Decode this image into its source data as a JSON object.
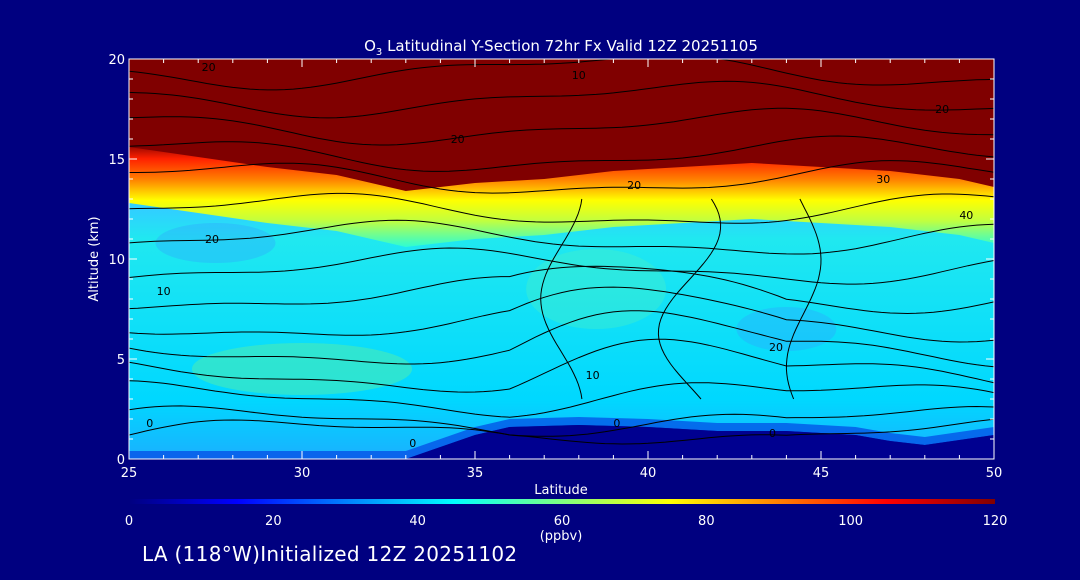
{
  "chart_data": {
    "type": "heatmap",
    "title": "O3 Latitudinal Y-Section 72hr  Fx Valid 12Z 20251105",
    "title_main": "O",
    "title_sub": "3",
    "title_rest": " Latitudinal Y-Section 72hr  Fx Valid 12Z 20251105",
    "xlabel": "Latitude",
    "ylabel": "Altitude (km)",
    "xlim": [
      25,
      50
    ],
    "ylim": [
      0,
      20
    ],
    "x_ticks": [
      25,
      30,
      35,
      40,
      45,
      50
    ],
    "y_ticks": [
      0,
      5,
      10,
      15,
      20
    ],
    "colorbar": {
      "range": [
        0,
        120
      ],
      "ticks": [
        0,
        20,
        40,
        60,
        80,
        100,
        120
      ],
      "unit_label": "(ppbv)",
      "colors": [
        "#000080",
        "#0000ff",
        "#0080ff",
        "#00ffff",
        "#80ff80",
        "#ffff00",
        "#ff8000",
        "#ff0000",
        "#800000"
      ]
    },
    "tropopause_km": [
      [
        25,
        14.0
      ],
      [
        27,
        13.5
      ],
      [
        29,
        13.0
      ],
      [
        31,
        12.6
      ],
      [
        33,
        11.8
      ],
      [
        35,
        12.2
      ],
      [
        37,
        12.4
      ],
      [
        39,
        12.8
      ],
      [
        41,
        13.0
      ],
      [
        43,
        13.2
      ],
      [
        45,
        13.0
      ],
      [
        47,
        12.8
      ],
      [
        49,
        12.4
      ],
      [
        50,
        12.0
      ]
    ],
    "terrain_km": [
      [
        25,
        0
      ],
      [
        33,
        0
      ],
      [
        34,
        0.6
      ],
      [
        35,
        1.2
      ],
      [
        36,
        1.6
      ],
      [
        38,
        1.7
      ],
      [
        40,
        1.6
      ],
      [
        42,
        1.4
      ],
      [
        44,
        1.4
      ],
      [
        46,
        1.2
      ],
      [
        47,
        0.9
      ],
      [
        48,
        0.7
      ],
      [
        50,
        1.2
      ]
    ],
    "contour_labels": [
      {
        "text": "0",
        "lat": 25.6,
        "alt": 1.8
      },
      {
        "text": "0",
        "lat": 33.2,
        "alt": 0.8
      },
      {
        "text": "0",
        "lat": 39.1,
        "alt": 1.8
      },
      {
        "text": "0",
        "lat": 43.6,
        "alt": 1.3
      },
      {
        "text": "10",
        "lat": 26.0,
        "alt": 8.4
      },
      {
        "text": "10",
        "lat": 38.4,
        "alt": 4.2
      },
      {
        "text": "20",
        "lat": 27.4,
        "alt": 11.0
      },
      {
        "text": "20",
        "lat": 43.7,
        "alt": 5.6
      },
      {
        "text": "20",
        "lat": 34.5,
        "alt": 16.0
      },
      {
        "text": "20",
        "lat": 48.5,
        "alt": 17.5
      },
      {
        "text": "10",
        "lat": 38.0,
        "alt": 19.2
      },
      {
        "text": "20",
        "lat": 27.3,
        "alt": 19.6
      },
      {
        "text": "20",
        "lat": 39.6,
        "alt": 13.7
      },
      {
        "text": "30",
        "lat": 46.8,
        "alt": 14.0
      },
      {
        "text": "40",
        "lat": 49.2,
        "alt": 12.2
      }
    ]
  },
  "footer": {
    "text": "LA (118°W)Initialized 12Z 20251102"
  }
}
